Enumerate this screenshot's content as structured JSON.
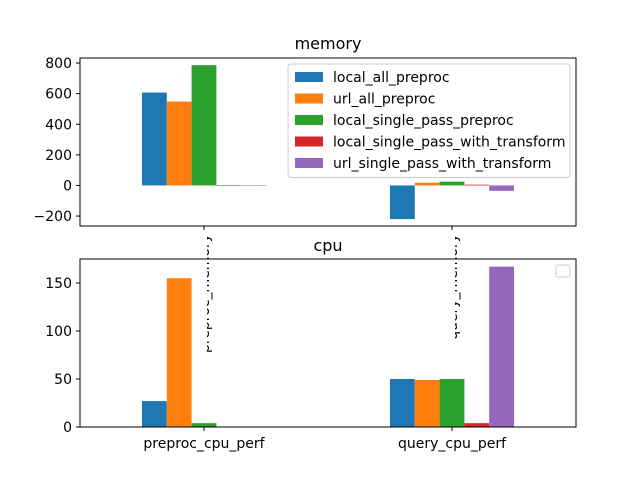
{
  "chart_data": [
    {
      "type": "bar",
      "title": "memory",
      "categories": [
        "preproc_memory",
        "query_memory"
      ],
      "series": [
        {
          "name": "local_all_preproc",
          "values": [
            607,
            -220
          ],
          "color": "#1f77b4"
        },
        {
          "name": "url_all_preproc",
          "values": [
            548,
            18
          ],
          "color": "#ff7f0e"
        },
        {
          "name": "local_single_pass_preproc",
          "values": [
            786,
            25
          ],
          "color": "#2ca02c"
        },
        {
          "name": "local_single_pass_with_transform",
          "values": [
            0,
            5
          ],
          "color": "#d62728"
        },
        {
          "name": "url_single_pass_with_transform",
          "values": [
            0,
            -35
          ],
          "color": "#9467bd"
        }
      ],
      "ylim": [
        -265,
        833
      ],
      "yticks": [
        -200,
        0,
        200,
        400,
        600,
        800
      ],
      "ytick_labels": [
        "−200",
        "0",
        "200",
        "400",
        "600",
        "800"
      ],
      "legend": "upper-right",
      "grid": false
    },
    {
      "type": "bar",
      "title": "cpu",
      "categories": [
        "preproc_cpu_perf",
        "query_cpu_perf"
      ],
      "series": [
        {
          "values": [
            27,
            50
          ],
          "color": "#1f77b4"
        },
        {
          "values": [
            155,
            49
          ],
          "color": "#ff7f0e"
        },
        {
          "values": [
            4,
            50
          ],
          "color": "#2ca02c"
        },
        {
          "values": [
            0,
            4
          ],
          "color": "#d62728"
        },
        {
          "values": [
            0,
            167
          ],
          "color": "#9467bd"
        }
      ],
      "ylim": [
        0,
        175
      ],
      "yticks": [
        0,
        50,
        100,
        150
      ],
      "ytick_labels": [
        "0",
        "50",
        "100",
        "150"
      ],
      "legend": "upper-right-empty",
      "grid": false
    }
  ]
}
